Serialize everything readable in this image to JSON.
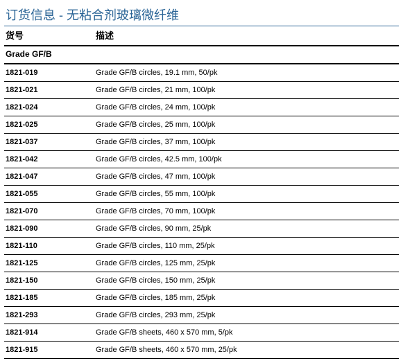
{
  "title": "订货信息 - 无粘合剂玻璃微纤维",
  "headers": {
    "code": "货号",
    "desc": "描述"
  },
  "grade_label": "Grade GF/B",
  "colors": {
    "title_color": "#2a6496",
    "border_color": "#000000",
    "background": "#ffffff",
    "text": "#000000"
  },
  "rows": [
    {
      "code": "1821-019",
      "desc": "Grade GF/B circles, 19.1 mm, 50/pk"
    },
    {
      "code": "1821-021",
      "desc": "Grade GF/B circles, 21 mm, 100/pk"
    },
    {
      "code": "1821-024",
      "desc": "Grade GF/B circles, 24 mm, 100/pk"
    },
    {
      "code": "1821-025",
      "desc": "Grade GF/B circles, 25 mm, 100/pk"
    },
    {
      "code": "1821-037",
      "desc": "Grade GF/B circles, 37 mm, 100/pk"
    },
    {
      "code": "1821-042",
      "desc": "Grade GF/B circles, 42.5 mm, 100/pk"
    },
    {
      "code": "1821-047",
      "desc": "Grade GF/B circles, 47 mm, 100/pk"
    },
    {
      "code": "1821-055",
      "desc": "Grade GF/B circles, 55 mm, 100/pk"
    },
    {
      "code": "1821-070",
      "desc": "Grade GF/B circles, 70 mm, 100/pk"
    },
    {
      "code": "1821-090",
      "desc": "Grade GF/B circles, 90 mm, 25/pk"
    },
    {
      "code": "1821-110",
      "desc": "Grade GF/B circles, 110 mm, 25/pk"
    },
    {
      "code": "1821-125",
      "desc": "Grade GF/B circles, 125 mm, 25/pk"
    },
    {
      "code": "1821-150",
      "desc": "Grade GF/B circles, 150 mm, 25/pk"
    },
    {
      "code": "1821-185",
      "desc": "Grade GF/B circles, 185 mm, 25/pk"
    },
    {
      "code": "1821-293",
      "desc": "Grade GF/B circles, 293 mm, 25/pk"
    },
    {
      "code": "1821-914",
      "desc": "Grade GF/B sheets, 460 x 570 mm, 5/pk"
    },
    {
      "code": "1821-915",
      "desc": "Grade GF/B sheets, 460 x 570 mm, 25/pk"
    }
  ]
}
